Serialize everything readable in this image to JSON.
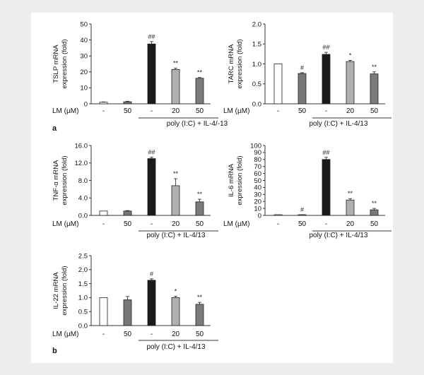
{
  "figure": {
    "panel_labels": [
      "a",
      "b"
    ],
    "lm_label": "LM (µM)",
    "treatment_group": "poly (I:C) + IL-4/13",
    "treatment_group_tslp": "poly (I:C) + IL-4/-13"
  },
  "chart_data": [
    {
      "type": "bar",
      "ylabel": [
        "TSLP mRNA",
        "expression (fold)"
      ],
      "categories": [
        "-",
        "50",
        "-",
        "20",
        "50"
      ],
      "group_label": "poly (I:C) + IL-4/-13",
      "yticks": [
        "0",
        "10",
        "20",
        "30",
        "40",
        "50"
      ],
      "ylim": [
        0,
        50
      ],
      "values": [
        1,
        1.3,
        37.5,
        21.5,
        16
      ],
      "errors": [
        0.2,
        0.3,
        1.5,
        0.8,
        0.5
      ],
      "significance": [
        "",
        "",
        "##",
        "**",
        "**"
      ],
      "colors": [
        "#ffffff",
        "#777777",
        "#1a1a1a",
        "#b0b0b0",
        "#7a7a7a"
      ]
    },
    {
      "type": "bar",
      "ylabel": [
        "TARC mRNA",
        "expression (fold)"
      ],
      "categories": [
        "-",
        "50",
        "-",
        "20",
        "50"
      ],
      "group_label": "poly (I:C) + IL-4/13",
      "yticks": [
        "0.0",
        "0.5",
        "1.0",
        "1.5",
        "2.0"
      ],
      "ylim": [
        0,
        2
      ],
      "values": [
        1.0,
        0.76,
        1.24,
        1.06,
        0.75
      ],
      "errors": [
        0,
        0.02,
        0.05,
        0.03,
        0.05
      ],
      "significance": [
        "",
        "#",
        "##",
        "*",
        "**"
      ],
      "colors": [
        "#ffffff",
        "#777777",
        "#1a1a1a",
        "#b0b0b0",
        "#7a7a7a"
      ]
    },
    {
      "type": "bar",
      "ylabel": [
        "TNF-α mRNA",
        "expression (fold)"
      ],
      "categories": [
        "-",
        "50",
        "-",
        "20",
        "50"
      ],
      "group_label": "poly (I:C) + IL-4/13",
      "yticks": [
        "0.0",
        "4.0",
        "8.0",
        "12.0",
        "16.0"
      ],
      "ylim": [
        0,
        16
      ],
      "values": [
        1.0,
        1.0,
        13.0,
        6.8,
        3.1
      ],
      "errors": [
        0,
        0.1,
        0.3,
        1.6,
        0.6
      ],
      "significance": [
        "",
        "",
        "##",
        "**",
        "**"
      ],
      "colors": [
        "#ffffff",
        "#777777",
        "#1a1a1a",
        "#b0b0b0",
        "#7a7a7a"
      ]
    },
    {
      "type": "bar",
      "ylabel": [
        "IL-6 mRNA",
        "expression (fold)"
      ],
      "categories": [
        "-",
        "50",
        "-",
        "20",
        "50"
      ],
      "group_label": "poly (I:C) + IL-4/13",
      "yticks": [
        "0",
        "10",
        "20",
        "30",
        "40",
        "50",
        "60",
        "70",
        "80",
        "90",
        "100"
      ],
      "ylim": [
        0,
        100
      ],
      "values": [
        1,
        0.6,
        80,
        22,
        8
      ],
      "errors": [
        0,
        0.2,
        3,
        2,
        2
      ],
      "significance": [
        "",
        "#",
        "##",
        "**",
        "**"
      ],
      "colors": [
        "#ffffff",
        "#777777",
        "#1a1a1a",
        "#b0b0b0",
        "#7a7a7a"
      ]
    },
    {
      "type": "bar",
      "ylabel": [
        "IL-22 mRNA",
        "expression (fold)"
      ],
      "categories": [
        "-",
        "50",
        "-",
        "20",
        "50"
      ],
      "group_label": "poly (I:C) + IL-4/13",
      "yticks": [
        "0.0",
        "0.5",
        "1.0",
        "1.5",
        "2.0",
        "2.5"
      ],
      "ylim": [
        0,
        2.5
      ],
      "values": [
        1.0,
        0.92,
        1.62,
        1.0,
        0.76
      ],
      "errors": [
        0,
        0.12,
        0.05,
        0.05,
        0.07
      ],
      "significance": [
        "",
        "",
        "#",
        "*",
        "**"
      ],
      "colors": [
        "#ffffff",
        "#777777",
        "#1a1a1a",
        "#b0b0b0",
        "#7a7a7a"
      ]
    }
  ]
}
